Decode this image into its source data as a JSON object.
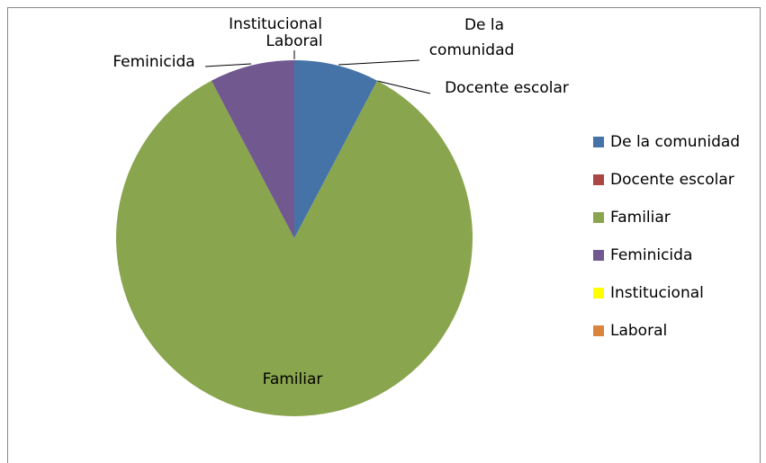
{
  "chart_data": {
    "type": "pie",
    "categories": [
      "De la comunidad",
      "Docente escolar",
      "Familiar",
      "Feminicida",
      "Institucional",
      "Laboral"
    ],
    "values": [
      7.7,
      0,
      84.6,
      7.7,
      0,
      0
    ],
    "colors": [
      "#4572a7",
      "#aa4643",
      "#89a54e",
      "#71588f",
      "#ffff00",
      "#db843d"
    ],
    "legend": "right"
  }
}
